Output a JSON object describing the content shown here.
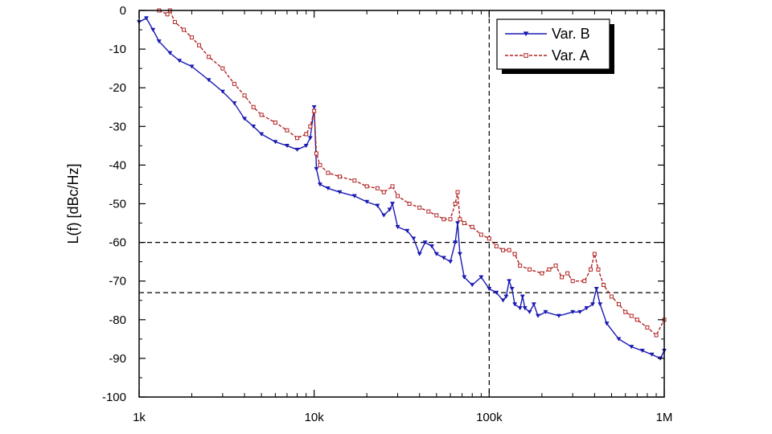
{
  "chart_data": {
    "type": "line",
    "title": "",
    "xlabel": "",
    "ylabel": "L(f) [dBc/Hz]",
    "x_scale": "log",
    "xlim": [
      1000,
      1000000
    ],
    "ylim": [
      -100,
      0
    ],
    "x_ticks": [
      {
        "value": 1000,
        "label": "1k"
      },
      {
        "value": 10000,
        "label": "10k"
      },
      {
        "value": 100000,
        "label": "100k"
      },
      {
        "value": 1000000,
        "label": "1M"
      }
    ],
    "y_ticks": [
      {
        "value": 0,
        "label": "0"
      },
      {
        "value": -10,
        "label": "-10"
      },
      {
        "value": -20,
        "label": "-20"
      },
      {
        "value": -30,
        "label": "-30"
      },
      {
        "value": -40,
        "label": "-40"
      },
      {
        "value": -50,
        "label": "-50"
      },
      {
        "value": -60,
        "label": "-60"
      },
      {
        "value": -70,
        "label": "-70"
      },
      {
        "value": -80,
        "label": "-80"
      },
      {
        "value": -90,
        "label": "-90"
      },
      {
        "value": -100,
        "label": "-100"
      }
    ],
    "grid": false,
    "legend_position": "top-right",
    "reference_lines": {
      "horizontal": [
        -60,
        -73
      ],
      "vertical": [
        100000
      ]
    },
    "series": [
      {
        "name": "Var. B",
        "color": "#1a1ab4",
        "line_style": "solid",
        "marker": "triangle-down",
        "x": [
          1000,
          1100,
          1200,
          1300,
          1500,
          1700,
          2000,
          2500,
          3000,
          3500,
          4000,
          4500,
          5000,
          6000,
          7000,
          8000,
          9000,
          9500,
          10000,
          10300,
          10800,
          12000,
          14000,
          17000,
          20000,
          23000,
          25000,
          27000,
          28000,
          30000,
          34000,
          37000,
          40000,
          43000,
          47000,
          50000,
          55000,
          60000,
          64000,
          66000,
          68000,
          72000,
          80000,
          90000,
          100000,
          110000,
          120000,
          125000,
          130000,
          135000,
          140000,
          150000,
          155000,
          160000,
          170000,
          180000,
          190000,
          210000,
          250000,
          300000,
          330000,
          360000,
          390000,
          410000,
          430000,
          470000,
          550000,
          650000,
          750000,
          850000,
          950000,
          1000000
        ],
        "y": [
          -3,
          -2,
          -5,
          -8,
          -11,
          -13,
          -14.5,
          -18,
          -21,
          -24,
          -28,
          -30,
          -32,
          -34,
          -35,
          -36,
          -35,
          -33,
          -25,
          -41,
          -45,
          -46,
          -47,
          -48,
          -49.5,
          -50.5,
          -53,
          -51.5,
          -50,
          -56,
          -57,
          -59,
          -63,
          -60,
          -61,
          -63,
          -64,
          -65,
          -60,
          -55,
          -63,
          -69,
          -71,
          -69,
          -72,
          -73,
          -75,
          -74,
          -70,
          -72,
          -76,
          -77,
          -74,
          -77,
          -78,
          -76,
          -79,
          -78,
          -79,
          -78,
          -78,
          -77,
          -76,
          -72,
          -76,
          -81,
          -85,
          -87,
          -88,
          -89,
          -90,
          -88
        ]
      },
      {
        "name": "Var. A",
        "color": "#b22222",
        "line_style": "dashed",
        "marker": "square-open",
        "x": [
          1300,
          1450,
          1500,
          1600,
          1800,
          2000,
          2200,
          2500,
          3000,
          3500,
          4000,
          4500,
          5000,
          6000,
          7000,
          8000,
          9000,
          9500,
          10000,
          10300,
          10800,
          12000,
          14000,
          17000,
          20000,
          23000,
          25000,
          28000,
          30000,
          35000,
          40000,
          45000,
          50000,
          55000,
          60000,
          64000,
          66000,
          68000,
          72000,
          80000,
          90000,
          100000,
          110000,
          120000,
          130000,
          140000,
          150000,
          170000,
          200000,
          220000,
          240000,
          260000,
          280000,
          300000,
          350000,
          380000,
          400000,
          420000,
          450000,
          500000,
          550000,
          600000,
          650000,
          700000,
          800000,
          900000,
          1000000
        ],
        "y": [
          0,
          -1,
          0,
          -3,
          -5,
          -7,
          -9,
          -12,
          -15,
          -19,
          -22,
          -25,
          -27,
          -29,
          -31,
          -33,
          -32,
          -30,
          -26,
          -37,
          -40,
          -42,
          -43,
          -44,
          -45.5,
          -46,
          -47,
          -45.5,
          -48,
          -50,
          -51,
          -52,
          -53,
          -54,
          -54,
          -50,
          -47,
          -54,
          -55,
          -56,
          -58,
          -59,
          -61,
          -62,
          -62,
          -63,
          -66,
          -67,
          -68,
          -67,
          -66,
          -69,
          -68,
          -70,
          -70,
          -67,
          -63,
          -67,
          -71,
          -74,
          -76,
          -78,
          -79,
          -80,
          -82,
          -84,
          -80
        ]
      }
    ],
    "legend": [
      {
        "name": "Var. B"
      },
      {
        "name": "Var. A"
      }
    ]
  }
}
